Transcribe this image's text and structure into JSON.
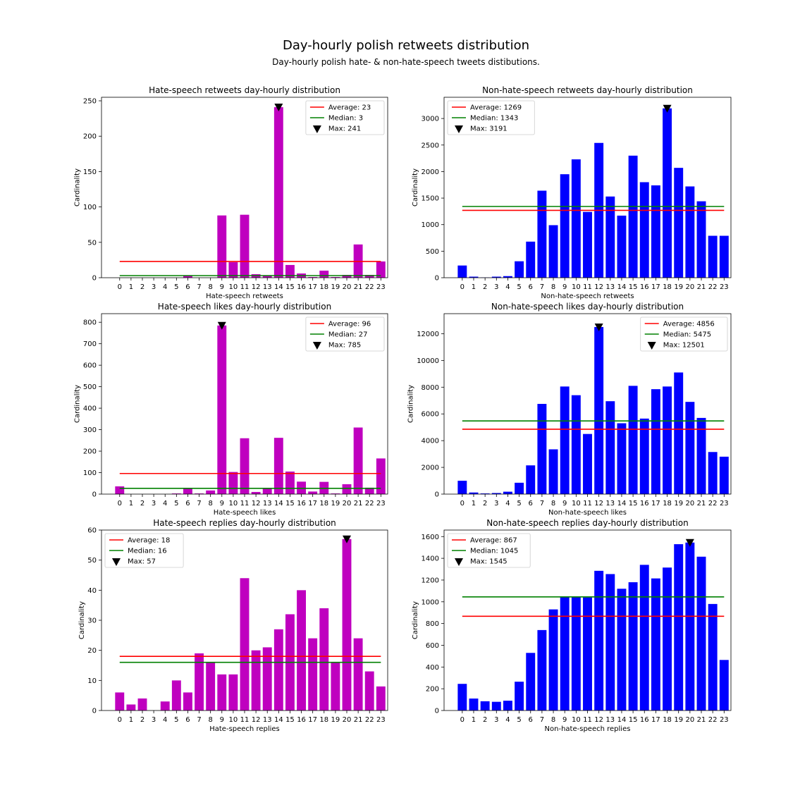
{
  "figure": {
    "title": "Day-hourly polish retweets distribution",
    "subtitle": "Day-hourly polish hate- & non-hate-speech tweets distibutions.",
    "colors": {
      "average": "#ff0000",
      "median": "#008000",
      "max_marker": "#000000"
    }
  },
  "chart_data": [
    {
      "type": "bar",
      "title": "Hate-speech retweets day-hourly distribution",
      "xlabel": "Hate-speech retweets",
      "ylabel": "Cardinality",
      "categories": [
        "0",
        "1",
        "2",
        "3",
        "4",
        "5",
        "6",
        "7",
        "8",
        "9",
        "10",
        "11",
        "12",
        "13",
        "14",
        "15",
        "16",
        "17",
        "18",
        "19",
        "20",
        "21",
        "22",
        "23"
      ],
      "values": [
        0,
        0,
        0,
        0,
        0,
        0,
        3,
        0,
        0,
        88,
        22,
        89,
        5,
        3,
        241,
        18,
        6,
        1,
        10,
        1,
        4,
        47,
        4,
        23
      ],
      "ylim": [
        0,
        255
      ],
      "yticks": [
        0,
        50,
        100,
        150,
        200,
        250
      ],
      "bar_color": "#bf00bf",
      "average": 23,
      "median": 3,
      "max": 241,
      "max_index": 14,
      "legend": {
        "position": "upper-right",
        "average_label": "Average: 23",
        "median_label": "Median: 3",
        "max_label": "Max: 241"
      }
    },
    {
      "type": "bar",
      "title": "Non-hate-speech retweets day-hourly distribution",
      "xlabel": "Non-hate-speech retweets",
      "ylabel": "Cardinality",
      "categories": [
        "0",
        "1",
        "2",
        "3",
        "4",
        "5",
        "6",
        "7",
        "8",
        "9",
        "10",
        "11",
        "12",
        "13",
        "14",
        "15",
        "16",
        "17",
        "18",
        "19",
        "20",
        "21",
        "22",
        "23"
      ],
      "values": [
        230,
        20,
        5,
        20,
        30,
        310,
        680,
        1640,
        990,
        1950,
        2230,
        1240,
        2540,
        1530,
        1170,
        2300,
        1800,
        1740,
        3191,
        2070,
        1720,
        1440,
        790,
        790
      ],
      "ylim": [
        0,
        3400
      ],
      "yticks": [
        0,
        500,
        1000,
        1500,
        2000,
        2500,
        3000
      ],
      "bar_color": "#0000ff",
      "average": 1269,
      "median": 1343,
      "max": 3191,
      "max_index": 18,
      "legend": {
        "position": "upper-left",
        "average_label": "Average: 1269",
        "median_label": "Median: 1343",
        "max_label": "Max: 3191"
      }
    },
    {
      "type": "bar",
      "title": "Hate-speech likes day-hourly distribution",
      "xlabel": "Hate-speech likes",
      "ylabel": "Cardinality",
      "categories": [
        "0",
        "1",
        "2",
        "3",
        "4",
        "5",
        "6",
        "7",
        "8",
        "9",
        "10",
        "11",
        "12",
        "13",
        "14",
        "15",
        "16",
        "17",
        "18",
        "19",
        "20",
        "21",
        "22",
        "23"
      ],
      "values": [
        36,
        0,
        0,
        0,
        0,
        3,
        28,
        3,
        17,
        785,
        103,
        260,
        10,
        25,
        262,
        105,
        58,
        12,
        57,
        3,
        46,
        310,
        30,
        166
      ],
      "ylim": [
        0,
        840
      ],
      "yticks": [
        0,
        100,
        200,
        300,
        400,
        500,
        600,
        700,
        800
      ],
      "bar_color": "#bf00bf",
      "average": 96,
      "median": 27,
      "max": 785,
      "max_index": 9,
      "legend": {
        "position": "upper-right",
        "average_label": "Average: 96",
        "median_label": "Median: 27",
        "max_label": "Max: 785"
      }
    },
    {
      "type": "bar",
      "title": "Non-hate-speech likes day-hourly distribution",
      "xlabel": "Non-hate-speech likes",
      "ylabel": "Cardinality",
      "categories": [
        "0",
        "1",
        "2",
        "3",
        "4",
        "5",
        "6",
        "7",
        "8",
        "9",
        "10",
        "11",
        "12",
        "13",
        "14",
        "15",
        "16",
        "17",
        "18",
        "19",
        "20",
        "21",
        "22",
        "23"
      ],
      "values": [
        1000,
        120,
        50,
        80,
        180,
        850,
        2150,
        6750,
        3350,
        8050,
        7400,
        4500,
        12501,
        6950,
        5300,
        8100,
        5650,
        7850,
        8050,
        9100,
        6900,
        5700,
        3150,
        2800
      ],
      "ylim": [
        0,
        13500
      ],
      "yticks": [
        0,
        2000,
        4000,
        6000,
        8000,
        10000,
        12000
      ],
      "bar_color": "#0000ff",
      "average": 4856,
      "median": 5475,
      "max": 12501,
      "max_index": 12,
      "legend": {
        "position": "upper-right",
        "average_label": "Average: 4856",
        "median_label": "Median: 5475",
        "max_label": "Max: 12501"
      }
    },
    {
      "type": "bar",
      "title": "Hate-speech replies day-hourly distribution",
      "xlabel": "Hate-speech replies",
      "ylabel": "Cardinality",
      "categories": [
        "0",
        "1",
        "2",
        "3",
        "4",
        "5",
        "6",
        "7",
        "8",
        "9",
        "10",
        "11",
        "12",
        "13",
        "14",
        "15",
        "16",
        "17",
        "18",
        "19",
        "20",
        "21",
        "22",
        "23"
      ],
      "values": [
        6,
        2,
        4,
        0,
        3,
        10,
        6,
        19,
        16,
        12,
        12,
        44,
        20,
        21,
        27,
        32,
        40,
        24,
        34,
        16,
        57,
        24,
        13,
        8
      ],
      "ylim": [
        0,
        60
      ],
      "yticks": [
        0,
        10,
        20,
        30,
        40,
        50,
        60
      ],
      "bar_color": "#bf00bf",
      "average": 18,
      "median": 16,
      "max": 57,
      "max_index": 20,
      "legend": {
        "position": "upper-left",
        "average_label": "Average: 18",
        "median_label": "Median: 16",
        "max_label": "Max: 57"
      }
    },
    {
      "type": "bar",
      "title": "Non-hate-speech replies day-hourly distribution",
      "xlabel": "Non-hate-speech replies",
      "ylabel": "Cardinality",
      "categories": [
        "0",
        "1",
        "2",
        "3",
        "4",
        "5",
        "6",
        "7",
        "8",
        "9",
        "10",
        "11",
        "12",
        "13",
        "14",
        "15",
        "16",
        "17",
        "18",
        "19",
        "20",
        "21",
        "22",
        "23"
      ],
      "values": [
        245,
        110,
        85,
        80,
        90,
        265,
        530,
        740,
        930,
        1050,
        1050,
        1040,
        1285,
        1255,
        1120,
        1180,
        1340,
        1215,
        1315,
        1530,
        1545,
        1415,
        980,
        465
      ],
      "ylim": [
        0,
        1660
      ],
      "yticks": [
        0,
        200,
        400,
        600,
        800,
        1000,
        1200,
        1400,
        1600
      ],
      "bar_color": "#0000ff",
      "average": 867,
      "median": 1045,
      "max": 1545,
      "max_index": 20,
      "legend": {
        "position": "upper-left",
        "average_label": "Average: 867",
        "median_label": "Median: 1045",
        "max_label": "Max: 1545"
      }
    }
  ]
}
